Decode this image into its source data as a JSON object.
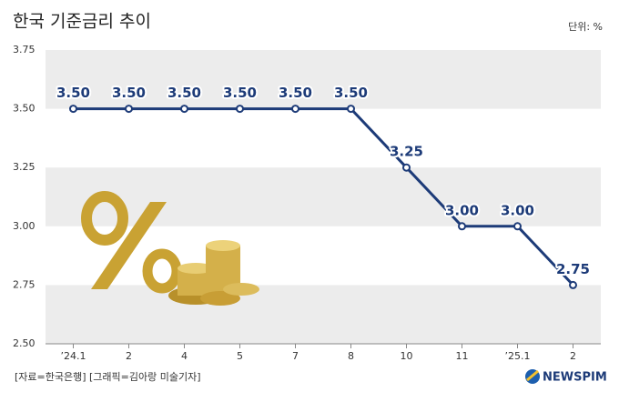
{
  "chart_data": {
    "type": "line",
    "title": "한국 기준금리 추이",
    "unit": "단위: %",
    "source": "[자료=한국은행] [그래픽=김아랑 미술기자]",
    "logo": "NEWSPIM",
    "categories": [
      "’24.1",
      "2",
      "4",
      "5",
      "7",
      "8",
      "10",
      "11",
      "’25.1",
      "2"
    ],
    "values": [
      3.5,
      3.5,
      3.5,
      3.5,
      3.5,
      3.5,
      3.25,
      3.0,
      3.0,
      2.75
    ],
    "value_labels": [
      "3.50",
      "3.50",
      "3.50",
      "3.50",
      "3.50",
      "3.50",
      "3.25",
      "3.00",
      "3.00",
      "2.75"
    ],
    "color": "#1d3b78",
    "ylim": [
      2.5,
      3.75
    ],
    "yticks": [
      {
        "value": 2.5,
        "label": "2.50"
      },
      {
        "value": 2.75,
        "label": "2.75"
      },
      {
        "value": 3.0,
        "label": "3.00"
      },
      {
        "value": 3.25,
        "label": "3.25"
      },
      {
        "value": 3.5,
        "label": "3.50"
      },
      {
        "value": 3.75,
        "label": "3.75"
      }
    ]
  }
}
